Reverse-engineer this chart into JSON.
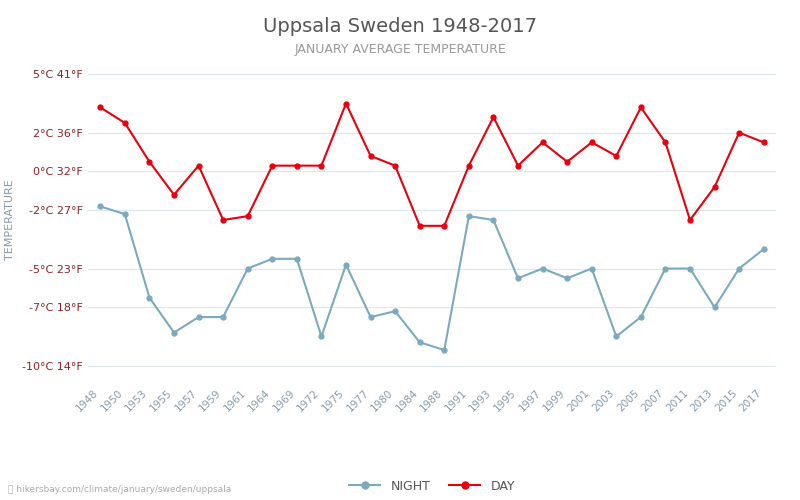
{
  "title": "Uppsala Sweden 1948-2017",
  "subtitle": "JANUARY AVERAGE TEMPERATURE",
  "ylabel": "TEMPERATURE",
  "xlabel_url": "hikersbay.com/climate/january/sweden/uppsala",
  "x_labels": [
    "1948",
    "1950",
    "1953",
    "1955",
    "1957",
    "1959",
    "1961",
    "1964",
    "1969",
    "1972",
    "1975",
    "1977",
    "1980",
    "1984",
    "1988",
    "1991",
    "1993",
    "1995",
    "1997",
    "1999",
    "2001",
    "2003",
    "2005",
    "2007",
    "2011",
    "2013",
    "2015",
    "2017"
  ],
  "day_temps": [
    3.3,
    2.5,
    0.5,
    -1.2,
    0.3,
    -2.5,
    -2.3,
    0.3,
    0.3,
    0.3,
    3.5,
    0.8,
    0.3,
    -2.8,
    -2.8,
    0.3,
    2.8,
    0.3,
    1.5,
    0.5,
    1.5,
    0.8,
    3.3,
    1.5,
    -2.5,
    -0.8,
    2.0,
    1.5
  ],
  "night_temps": [
    -1.8,
    -2.2,
    -6.5,
    -8.3,
    -7.5,
    -7.5,
    -5.0,
    -4.5,
    -4.5,
    -8.5,
    -4.8,
    -7.5,
    -7.2,
    -8.8,
    -9.2,
    -2.3,
    -2.5,
    -5.5,
    -5.0,
    -5.5,
    -5.0,
    -8.5,
    -7.5,
    -5.0,
    -5.0,
    -7.0,
    -5.0,
    -4.0
  ],
  "ylim": [
    -11,
    6
  ],
  "yticks_c": [
    -10,
    -7,
    -5,
    -2,
    0,
    2,
    5
  ],
  "yticks_f": [
    14,
    18,
    23,
    27,
    32,
    36,
    41
  ],
  "day_color": "#e8000d",
  "night_color": "#7baabf",
  "title_color": "#555555",
  "subtitle_color": "#999999",
  "axis_label_color": "#8899aa",
  "tick_label_color": "#8b2222",
  "grid_color": "#dce8f0",
  "background_color": "#ffffff",
  "title_fontsize": 14,
  "subtitle_fontsize": 9,
  "ylabel_fontsize": 8,
  "ytick_fontsize": 8,
  "xtick_fontsize": 7.5,
  "legend_fontsize": 9,
  "line_width": 1.5,
  "marker_size": 3.5
}
